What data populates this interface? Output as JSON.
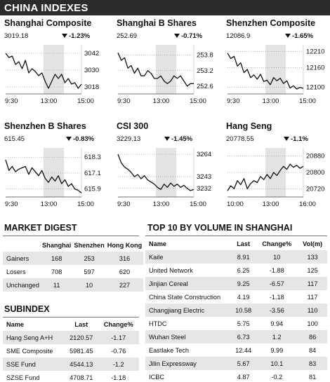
{
  "header": {
    "title": "CHINA INDEXES"
  },
  "chart_data": [
    {
      "type": "line",
      "title": "Shanghai Composite",
      "last": "3019.18",
      "change": "-1.23%",
      "x_ticks": [
        "9:30",
        "13:00",
        "15:00"
      ],
      "y_ticks": [
        3042,
        3030,
        3018
      ],
      "ylim": [
        3013,
        3048
      ],
      "shaded_band": [
        0.5,
        0.77
      ],
      "values": [
        3042,
        3039,
        3040,
        3034,
        3036,
        3031,
        3037,
        3028,
        3031,
        3029,
        3026,
        3028,
        3022,
        3017,
        3022,
        3027,
        3024,
        3027,
        3021,
        3024,
        3020,
        3021,
        3017,
        3020
      ]
    },
    {
      "type": "line",
      "title": "Shanghai B Shares",
      "last": "252.69",
      "change": "-0.71%",
      "x_ticks": [
        "9:30",
        "13:00",
        "15:00"
      ],
      "y_ticks": [
        253.8,
        253.2,
        252.6
      ],
      "ylim": [
        252.3,
        254.2
      ],
      "shaded_band": [
        0.5,
        0.77
      ],
      "values": [
        253.9,
        253.6,
        253.7,
        253.3,
        253.4,
        253.1,
        253.3,
        253.0,
        253.0,
        253.2,
        253.1,
        252.9,
        252.9,
        253.0,
        252.8,
        252.7,
        252.8,
        253.0,
        252.9,
        253.0,
        252.8,
        252.6,
        252.7,
        252.7
      ]
    },
    {
      "type": "line",
      "title": "Shenzhen Composite",
      "last": "12086.9",
      "change": "-1.65%",
      "x_ticks": [
        "9:30",
        "13:00",
        "15:00"
      ],
      "y_ticks": [
        12210,
        12160,
        12100
      ],
      "ylim": [
        12080,
        12230
      ],
      "shaded_band": [
        0.5,
        0.77
      ],
      "values": [
        12205,
        12188,
        12195,
        12165,
        12175,
        12145,
        12155,
        12130,
        12138,
        12125,
        12140,
        12118,
        12122,
        12108,
        12130,
        12120,
        12128,
        12112,
        12120,
        12098,
        12105,
        12095,
        12100,
        12097
      ]
    },
    {
      "type": "line",
      "title": "Shenzhen B Shares",
      "last": "615.45",
      "change": "-0.83%",
      "x_ticks": [
        "9:30",
        "13:00",
        "15:00"
      ],
      "y_ticks": [
        618.3,
        617.1,
        615.9
      ],
      "ylim": [
        615.3,
        619.0
      ],
      "shaded_band": [
        0.5,
        0.77
      ],
      "values": [
        618.1,
        617.3,
        617.6,
        617.2,
        617.4,
        617.5,
        617.6,
        617.0,
        617.5,
        617.2,
        616.9,
        617.3,
        616.7,
        616.4,
        616.8,
        616.5,
        616.9,
        616.3,
        616.6,
        616.1,
        616.3,
        615.9,
        615.8,
        615.6
      ]
    },
    {
      "type": "line",
      "title": "CSI 300",
      "last": "3229.13",
      "change": "-1.45%",
      "x_ticks": [
        "9:30",
        "13:00",
        "15:00"
      ],
      "y_ticks": [
        3264,
        3243,
        3232
      ],
      "ylim": [
        3224,
        3270
      ],
      "shaded_band": [
        0.5,
        0.77
      ],
      "values": [
        3264,
        3256,
        3252,
        3250,
        3247,
        3243,
        3245,
        3241,
        3244,
        3240,
        3238,
        3236,
        3233,
        3231,
        3236,
        3233,
        3237,
        3234,
        3236,
        3233,
        3235,
        3232,
        3230,
        3231
      ]
    },
    {
      "type": "line",
      "title": "Hang Seng",
      "last": "20778.55",
      "change": "-1.1%",
      "x_ticks": [
        "10:00",
        "13:00",
        "16:00"
      ],
      "y_ticks": [
        20880,
        20800,
        20720
      ],
      "ylim": [
        20680,
        20920
      ],
      "shaded_band": [
        0.5,
        0.77
      ],
      "values": [
        20710,
        20735,
        20720,
        20760,
        20740,
        20770,
        20720,
        20745,
        20760,
        20750,
        20780,
        20765,
        20790,
        20770,
        20800,
        20785,
        20810,
        20830,
        20815,
        20840,
        20825,
        20835,
        20820,
        20830
      ]
    }
  ],
  "market_digest": {
    "title": "MARKET DIGEST",
    "columns": [
      "",
      "Shanghai",
      "Shenzhen",
      "Hong Kong"
    ],
    "rows": [
      [
        "Gainers",
        "168",
        "253",
        "316"
      ],
      [
        "Losers",
        "708",
        "597",
        "620"
      ],
      [
        "Unchanged",
        "11",
        "10",
        "227"
      ]
    ]
  },
  "subindex": {
    "title": "SUBINDEX",
    "columns": [
      "Name",
      "Last",
      "Change%"
    ],
    "rows": [
      [
        "Hang Seng A+H",
        "2120.57",
        "-1.17"
      ],
      [
        "SME Composite",
        "5981.45",
        "-0.76"
      ],
      [
        "SSE Fund",
        "4544.13",
        "-1.2"
      ],
      [
        "SZSE Fund",
        "4708.71",
        "-1.18"
      ]
    ]
  },
  "top10": {
    "title": "TOP 10 BY VOLUME IN SHANGHAI",
    "columns": [
      "Name",
      "Last",
      "Change%",
      "Vol(m)"
    ],
    "rows": [
      [
        "Kaile",
        "8.91",
        "10",
        "133"
      ],
      [
        "United Network",
        "6.25",
        "-1.88",
        "125"
      ],
      [
        "Jinjian Cereal",
        "9.25",
        "-6.57",
        "117"
      ],
      [
        "China State Construction",
        "4.19",
        "-1.18",
        "117"
      ],
      [
        "Changjiang Electric",
        "10.58",
        "-3.56",
        "110"
      ],
      [
        "HTDC",
        "5.75",
        "9.94",
        "100"
      ],
      [
        "Wuhan Steel",
        "6.73",
        "1.2",
        "86"
      ],
      [
        "Eastlake Tech",
        "12.44",
        "9.99",
        "84"
      ],
      [
        "Jilin Expressway",
        "5.67",
        "10.1",
        "83"
      ],
      [
        "ICBC",
        "4.87",
        "-0.2",
        "81"
      ]
    ]
  }
}
